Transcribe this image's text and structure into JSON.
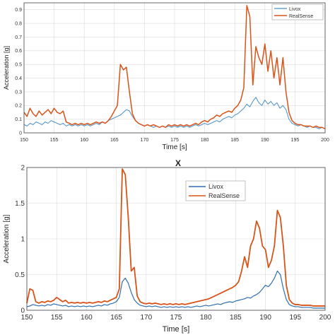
{
  "chart_data": [
    {
      "type": "line",
      "title": "",
      "xlabel": "Time [s]",
      "ylabel": "Acceleration [g]",
      "xlim": [
        150,
        200
      ],
      "ylim": [
        0,
        0.95
      ],
      "xticks": [
        150,
        155,
        160,
        165,
        170,
        175,
        180,
        185,
        190,
        195,
        200
      ],
      "yticks": [
        0,
        0.1,
        0.2,
        0.3,
        0.4,
        0.5,
        0.6,
        0.7,
        0.8,
        0.9
      ],
      "grid": true,
      "legend": "top-right",
      "series": [
        {
          "name": "Livox",
          "color": "#4a90c8",
          "x": [
            150,
            150.5,
            151,
            151.5,
            152,
            152.5,
            153,
            153.5,
            154,
            154.5,
            155,
            155.5,
            156,
            156.5,
            157,
            157.5,
            158,
            158.5,
            159,
            159.5,
            160,
            160.5,
            161,
            161.5,
            162,
            162.5,
            163,
            163.5,
            164,
            164.5,
            165,
            165.5,
            166,
            166.5,
            167,
            167.5,
            168,
            168.5,
            169,
            169.5,
            170,
            170.5,
            171,
            171.5,
            172,
            172.5,
            173,
            173.5,
            174,
            174.5,
            175,
            175.5,
            176,
            176.5,
            177,
            177.5,
            178,
            178.5,
            179,
            179.5,
            180,
            180.5,
            181,
            181.5,
            182,
            182.5,
            183,
            183.5,
            184,
            184.5,
            185,
            185.5,
            186,
            186.5,
            187,
            187.5,
            188,
            188.5,
            189,
            189.5,
            190,
            190.5,
            191,
            191.5,
            192,
            192.5,
            193,
            193.5,
            194,
            194.5,
            195,
            195.5,
            196,
            196.5,
            197,
            197.5,
            198,
            198.5,
            199,
            199.5,
            200
          ],
          "y": [
            0.06,
            0.05,
            0.07,
            0.06,
            0.08,
            0.07,
            0.06,
            0.08,
            0.07,
            0.09,
            0.08,
            0.07,
            0.06,
            0.07,
            0.05,
            0.06,
            0.05,
            0.06,
            0.05,
            0.06,
            0.05,
            0.06,
            0.05,
            0.06,
            0.07,
            0.06,
            0.08,
            0.07,
            0.09,
            0.1,
            0.11,
            0.12,
            0.13,
            0.15,
            0.17,
            0.16,
            0.12,
            0.09,
            0.07,
            0.06,
            0.05,
            0.06,
            0.05,
            0.04,
            0.05,
            0.04,
            0.05,
            0.04,
            0.05,
            0.04,
            0.05,
            0.04,
            0.05,
            0.04,
            0.05,
            0.04,
            0.05,
            0.06,
            0.05,
            0.06,
            0.07,
            0.06,
            0.07,
            0.08,
            0.09,
            0.08,
            0.1,
            0.11,
            0.12,
            0.11,
            0.13,
            0.14,
            0.16,
            0.18,
            0.21,
            0.19,
            0.23,
            0.26,
            0.22,
            0.2,
            0.24,
            0.21,
            0.23,
            0.2,
            0.22,
            0.18,
            0.2,
            0.17,
            0.1,
            0.07,
            0.06,
            0.05,
            0.06,
            0.05,
            0.04,
            0.05,
            0.04,
            0.04,
            0.03,
            0.04,
            0.03
          ]
        },
        {
          "name": "RealSense",
          "color": "#d95319",
          "x": [
            150,
            150.5,
            151,
            151.5,
            152,
            152.5,
            153,
            153.5,
            154,
            154.5,
            155,
            155.5,
            156,
            156.5,
            157,
            157.5,
            158,
            158.5,
            159,
            159.5,
            160,
            160.5,
            161,
            161.5,
            162,
            162.5,
            163,
            163.5,
            164,
            164.5,
            165,
            165.5,
            166,
            166.5,
            167,
            167.5,
            168,
            168.5,
            169,
            169.5,
            170,
            170.5,
            171,
            171.5,
            172,
            172.5,
            173,
            173.5,
            174,
            174.5,
            175,
            175.5,
            176,
            176.5,
            177,
            177.5,
            178,
            178.5,
            179,
            179.5,
            180,
            180.5,
            181,
            181.5,
            182,
            182.5,
            183,
            183.5,
            184,
            184.5,
            185,
            185.5,
            186,
            186.5,
            187,
            187.5,
            188,
            188.5,
            189,
            189.5,
            190,
            190.5,
            191,
            191.5,
            192,
            192.5,
            193,
            193.5,
            194,
            194.5,
            195,
            195.5,
            196,
            196.5,
            197,
            197.5,
            198,
            198.5,
            199,
            199.5,
            200
          ],
          "y": [
            0.15,
            0.12,
            0.18,
            0.14,
            0.12,
            0.16,
            0.13,
            0.15,
            0.17,
            0.14,
            0.18,
            0.15,
            0.14,
            0.16,
            0.08,
            0.07,
            0.06,
            0.07,
            0.06,
            0.07,
            0.06,
            0.07,
            0.06,
            0.07,
            0.08,
            0.07,
            0.08,
            0.07,
            0.09,
            0.12,
            0.16,
            0.2,
            0.5,
            0.46,
            0.48,
            0.3,
            0.14,
            0.09,
            0.07,
            0.06,
            0.05,
            0.06,
            0.05,
            0.06,
            0.05,
            0.04,
            0.05,
            0.04,
            0.06,
            0.05,
            0.06,
            0.05,
            0.06,
            0.05,
            0.06,
            0.05,
            0.06,
            0.07,
            0.06,
            0.08,
            0.09,
            0.08,
            0.1,
            0.11,
            0.13,
            0.12,
            0.14,
            0.15,
            0.16,
            0.15,
            0.18,
            0.2,
            0.24,
            0.33,
            0.93,
            0.85,
            0.35,
            0.63,
            0.55,
            0.5,
            0.65,
            0.45,
            0.6,
            0.4,
            0.55,
            0.35,
            0.55,
            0.3,
            0.15,
            0.09,
            0.07,
            0.06,
            0.06,
            0.05,
            0.05,
            0.05,
            0.04,
            0.05,
            0.04,
            0.04,
            0.03
          ]
        }
      ]
    },
    {
      "type": "line",
      "title": "X",
      "xlabel": "Time [s]",
      "ylabel": "Acceleration [g]",
      "xlim": [
        150,
        200
      ],
      "ylim": [
        0,
        2
      ],
      "xticks": [
        150,
        155,
        160,
        165,
        170,
        175,
        180,
        185,
        190,
        195,
        200
      ],
      "yticks": [
        0,
        0.5,
        1,
        1.5,
        2
      ],
      "grid": true,
      "legend": "top-center",
      "series": [
        {
          "name": "Livox",
          "color": "#2f6fb0",
          "x": [
            150,
            150.5,
            151,
            151.5,
            152,
            152.5,
            153,
            153.5,
            154,
            154.5,
            155,
            155.5,
            156,
            156.5,
            157,
            157.5,
            158,
            158.5,
            159,
            159.5,
            160,
            160.5,
            161,
            161.5,
            162,
            162.5,
            163,
            163.5,
            164,
            164.5,
            165,
            165.5,
            166,
            166.5,
            167,
            167.5,
            168,
            168.5,
            169,
            169.5,
            170,
            170.5,
            171,
            171.5,
            172,
            172.5,
            173,
            173.5,
            174,
            174.5,
            175,
            175.5,
            176,
            176.5,
            177,
            177.5,
            178,
            178.5,
            179,
            179.5,
            180,
            180.5,
            181,
            181.5,
            182,
            182.5,
            183,
            183.5,
            184,
            184.5,
            185,
            185.5,
            186,
            186.5,
            187,
            187.5,
            188,
            188.5,
            189,
            189.5,
            190,
            190.5,
            191,
            191.5,
            192,
            192.5,
            193,
            193.5,
            194,
            194.5,
            195,
            195.5,
            196,
            196.5,
            197,
            197.5,
            198,
            198.5,
            199,
            199.5,
            200
          ],
          "y": [
            0.05,
            0.06,
            0.08,
            0.07,
            0.06,
            0.07,
            0.06,
            0.08,
            0.07,
            0.09,
            0.08,
            0.07,
            0.06,
            0.07,
            0.05,
            0.06,
            0.05,
            0.06,
            0.05,
            0.06,
            0.05,
            0.06,
            0.05,
            0.06,
            0.07,
            0.06,
            0.08,
            0.07,
            0.09,
            0.1,
            0.12,
            0.18,
            0.4,
            0.45,
            0.38,
            0.25,
            0.15,
            0.1,
            0.07,
            0.06,
            0.05,
            0.06,
            0.05,
            0.06,
            0.05,
            0.04,
            0.05,
            0.04,
            0.05,
            0.04,
            0.05,
            0.04,
            0.05,
            0.04,
            0.05,
            0.04,
            0.05,
            0.06,
            0.05,
            0.06,
            0.07,
            0.06,
            0.07,
            0.08,
            0.09,
            0.08,
            0.1,
            0.11,
            0.12,
            0.11,
            0.13,
            0.14,
            0.15,
            0.16,
            0.18,
            0.17,
            0.2,
            0.22,
            0.25,
            0.3,
            0.35,
            0.33,
            0.38,
            0.45,
            0.55,
            0.5,
            0.3,
            0.15,
            0.08,
            0.06,
            0.05,
            0.05,
            0.04,
            0.04,
            0.04,
            0.04,
            0.03,
            0.03,
            0.03,
            0.03,
            0.03
          ]
        },
        {
          "name": "RealSense",
          "color": "#d95319",
          "x": [
            150,
            150.5,
            151,
            151.5,
            152,
            152.5,
            153,
            153.5,
            154,
            154.5,
            155,
            155.5,
            156,
            156.5,
            157,
            157.5,
            158,
            158.5,
            159,
            159.5,
            160,
            160.5,
            161,
            161.5,
            162,
            162.5,
            163,
            163.5,
            164,
            164.5,
            165,
            165.5,
            166,
            166.5,
            167,
            167.5,
            168,
            168.5,
            169,
            169.5,
            170,
            170.5,
            171,
            171.5,
            172,
            172.5,
            173,
            173.5,
            174,
            174.5,
            175,
            175.5,
            176,
            176.5,
            177,
            177.5,
            178,
            178.5,
            179,
            179.5,
            180,
            180.5,
            181,
            181.5,
            182,
            182.5,
            183,
            183.5,
            184,
            184.5,
            185,
            185.5,
            186,
            186.5,
            187,
            187.5,
            188,
            188.5,
            189,
            189.5,
            190,
            190.5,
            191,
            191.5,
            192,
            192.5,
            193,
            193.5,
            194,
            194.5,
            195,
            195.5,
            196,
            196.5,
            197,
            197.5,
            198,
            198.5,
            199,
            199.5,
            200
          ],
          "y": [
            0.1,
            0.3,
            0.28,
            0.12,
            0.1,
            0.12,
            0.11,
            0.13,
            0.12,
            0.14,
            0.18,
            0.15,
            0.12,
            0.14,
            0.1,
            0.11,
            0.1,
            0.11,
            0.1,
            0.11,
            0.1,
            0.11,
            0.1,
            0.11,
            0.12,
            0.11,
            0.13,
            0.12,
            0.14,
            0.16,
            0.18,
            0.3,
            1.98,
            1.9,
            1.3,
            0.55,
            0.6,
            0.2,
            0.12,
            0.1,
            0.09,
            0.1,
            0.09,
            0.1,
            0.09,
            0.08,
            0.09,
            0.08,
            0.09,
            0.08,
            0.09,
            0.08,
            0.09,
            0.08,
            0.09,
            0.1,
            0.11,
            0.12,
            0.13,
            0.14,
            0.15,
            0.16,
            0.18,
            0.2,
            0.22,
            0.24,
            0.26,
            0.28,
            0.3,
            0.32,
            0.35,
            0.4,
            0.55,
            0.75,
            0.6,
            0.9,
            1.0,
            1.25,
            1.15,
            0.9,
            0.85,
            0.6,
            0.7,
            0.9,
            1.4,
            1.3,
            0.9,
            0.35,
            0.15,
            0.1,
            0.08,
            0.08,
            0.07,
            0.07,
            0.07,
            0.07,
            0.06,
            0.06,
            0.06,
            0.06,
            0.06
          ]
        }
      ]
    }
  ]
}
